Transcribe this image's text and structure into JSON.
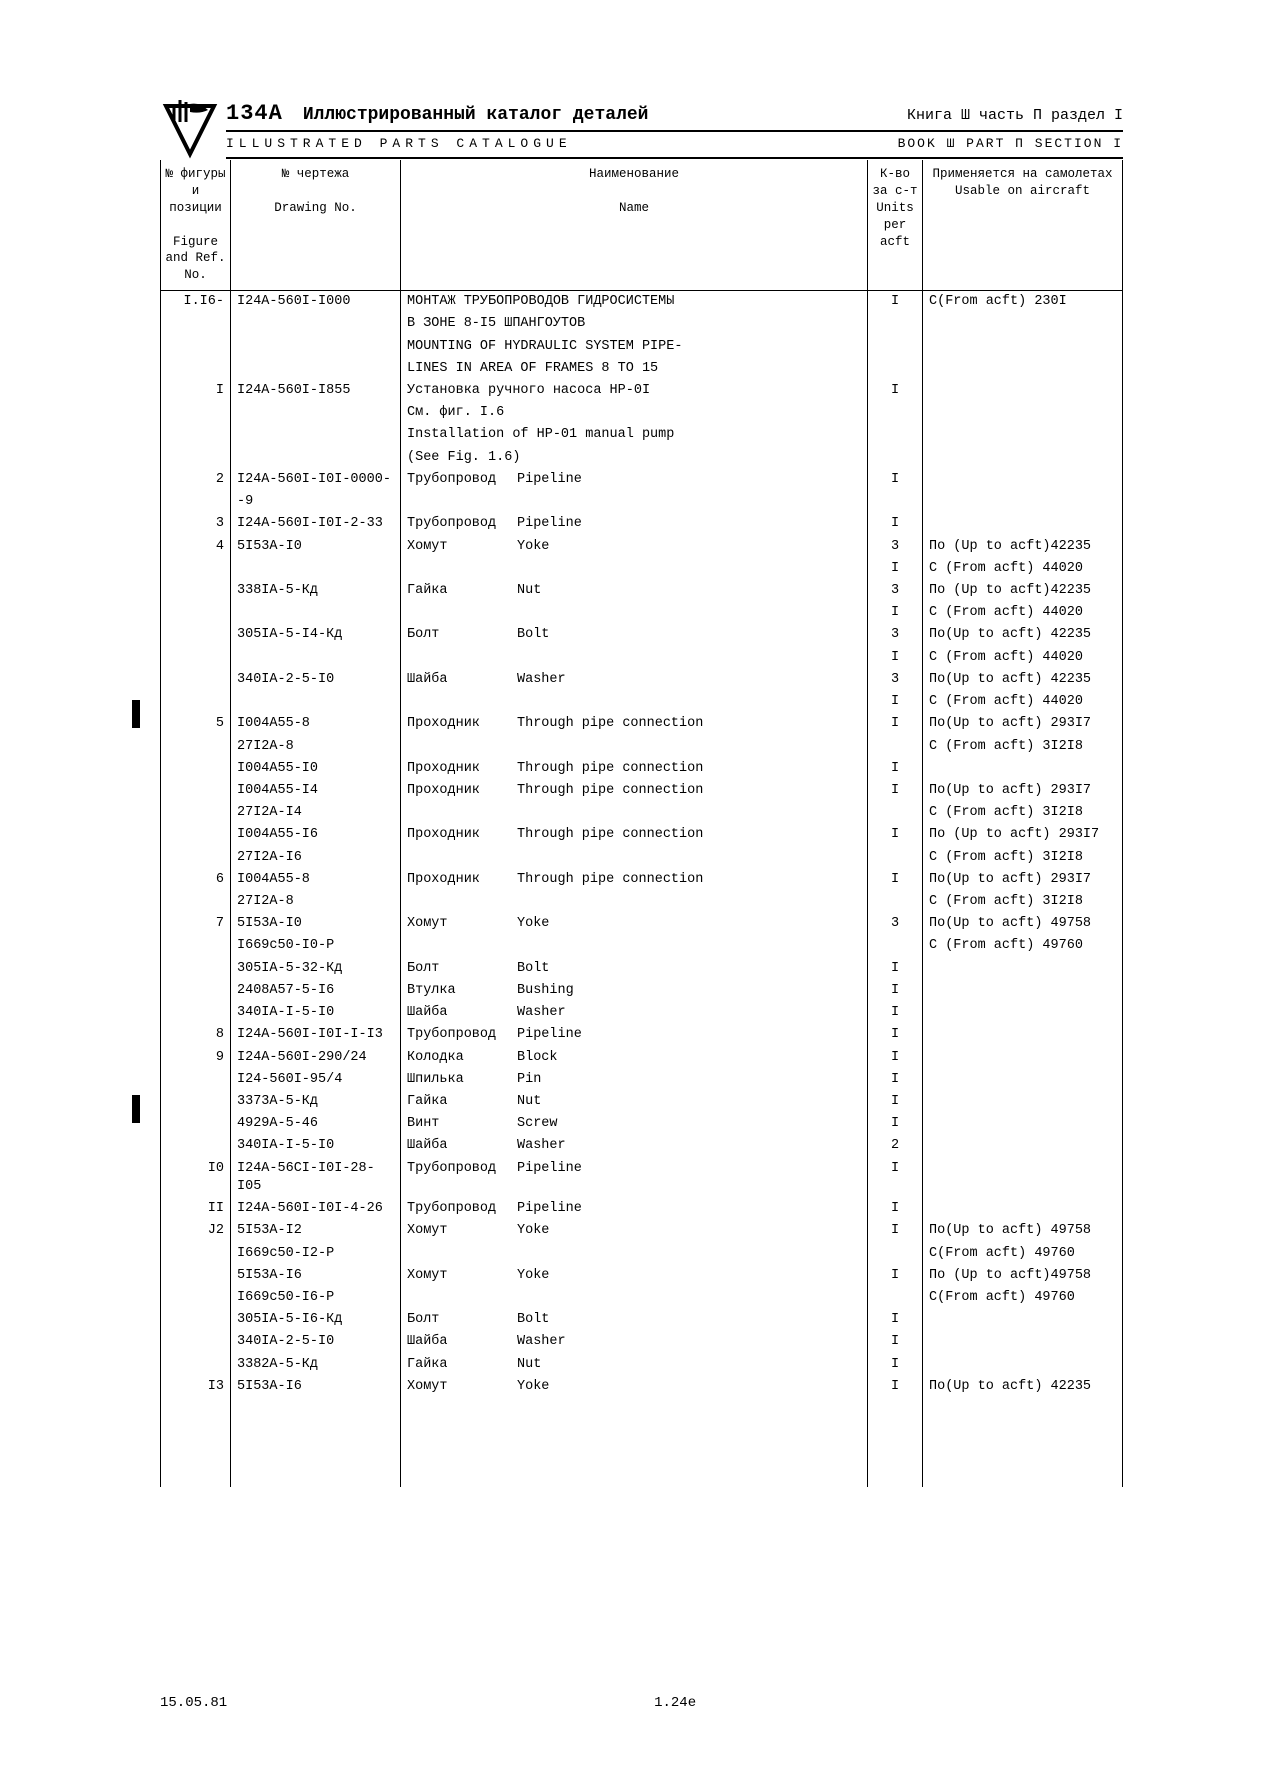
{
  "header": {
    "model": "134A",
    "title_ru": "Иллюстрированный  каталог  деталей",
    "title_en": "ILLUSTRATED  PARTS  CATALOGUE",
    "book_ru": "Книга  Ш   часть  П   раздел  I",
    "book_en": "BOOK  Ш    PART  П  SECTION I"
  },
  "columns": {
    "c1_ru": "№ фигуры и позиции",
    "c1_en": "Figure and Ref. No.",
    "c2_ru": "№  чертежа",
    "c2_en": "Drawing No.",
    "c3_ru": "Наименование",
    "c3_en": "Name",
    "c4_ru": "К-во за с-т",
    "c4_en": "Units per acft",
    "c5_ru": "Применяется на самолетах",
    "c5_en": "Usable on aircraft"
  },
  "rows": [
    {
      "ref": "I.I6-",
      "drw": "I24A-560I-I000",
      "name": "МОНТАЖ ТРУБОПРОВОДОВ ГИДРОСИСТЕМЫ",
      "units": "I",
      "use": "С(From acft)   230I",
      "pad": 1
    },
    {
      "ref": "",
      "drw": "",
      "name": "В ЗОНЕ 8-I5 ШПАНГОУТОВ",
      "units": "",
      "use": "",
      "pad": 1
    },
    {
      "ref": "",
      "drw": "",
      "name": "MOUNTING OF HYDRAULIC SYSTEM PIPE-",
      "units": "",
      "use": "",
      "pad": 1
    },
    {
      "ref": "",
      "drw": "",
      "name": "LINES IN AREA OF FRAMES 8 TO 15",
      "units": "",
      "use": "",
      "pad": 1
    },
    {
      "ref": "I",
      "drw": "I24A-560I-I855",
      "name": "Установка ручного насоса НР-0I",
      "units": "I",
      "use": ""
    },
    {
      "ref": "",
      "drw": "",
      "name": "См. фиг. I.6",
      "units": "",
      "use": ""
    },
    {
      "ref": "",
      "drw": "",
      "name": "Installation of HP-01 manual pump",
      "units": "",
      "use": ""
    },
    {
      "ref": "",
      "drw": "",
      "name": "(See Fig. 1.6)",
      "units": "",
      "use": ""
    },
    {
      "ref": "2",
      "drw": "I24A-560I-I0I-0000-",
      "name_ru": "Трубопровод",
      "name_en": "Pipeline",
      "units": "I",
      "use": ""
    },
    {
      "ref": "",
      "drw": "-9",
      "name": "",
      "units": "",
      "use": ""
    },
    {
      "ref": "3",
      "drw": "I24A-560I-I0I-2-33",
      "name_ru": "Трубопровод",
      "name_en": "Pipeline",
      "units": "I",
      "use": ""
    },
    {
      "ref": "4",
      "drw": "5I53A-I0",
      "name_ru": "Хомут",
      "name_en": "Yoke",
      "units": "3",
      "use": "По (Up to acft)42235"
    },
    {
      "ref": "",
      "drw": "",
      "name": "",
      "units": "I",
      "use": "С (From acft)  44020"
    },
    {
      "ref": "",
      "drw": "338IA-5-Кд",
      "name_ru": "Гайка",
      "name_en": "Nut",
      "units": "3",
      "use": "По (Up to acft)42235"
    },
    {
      "ref": "",
      "drw": "",
      "name": "",
      "units": "I",
      "use": "С (From acft)  44020"
    },
    {
      "ref": "",
      "drw": "305IA-5-I4-Кд",
      "name_ru": "Болт",
      "name_en": "Bolt",
      "units": "3",
      "use": "По(Up to acft) 42235"
    },
    {
      "ref": "",
      "drw": "",
      "name": "",
      "units": "I",
      "use": "С (From acft)  44020"
    },
    {
      "ref": "",
      "drw": "340IA-2-5-I0",
      "name_ru": "Шайба",
      "name_en": "Washer",
      "units": "3",
      "use": "По(Up to acft) 42235"
    },
    {
      "ref": "",
      "drw": "",
      "name": "",
      "units": "I",
      "use": "С (From acft)  44020"
    },
    {
      "ref": "5",
      "drw": "I004A55-8",
      "name_ru": "Проходник",
      "name_en": "Through pipe connection",
      "units": "I",
      "use": "По(Up to acft) 293I7"
    },
    {
      "ref": "",
      "drw": "27I2A-8",
      "name": "",
      "units": "",
      "use": "С (From acft)  3I2I8"
    },
    {
      "ref": "",
      "drw": "I004A55-I0",
      "name_ru": "Проходник",
      "name_en": "Through pipe connection",
      "units": "I",
      "use": ""
    },
    {
      "ref": "",
      "drw": "I004A55-I4",
      "name_ru": "Проходник",
      "name_en": "Through pipe connection",
      "units": "I",
      "use": "По(Up to acft) 293I7"
    },
    {
      "ref": "",
      "drw": "27I2A-I4",
      "name": "",
      "units": "",
      "use": "С (From acft)  3I2I8"
    },
    {
      "ref": "",
      "drw": "I004A55-I6",
      "name_ru": "Проходник",
      "name_en": "Through pipe connection",
      "units": "I",
      "use": "По (Up to acft) 293I7"
    },
    {
      "ref": "",
      "drw": "27I2A-I6",
      "name": "",
      "units": "",
      "use": "С (From acft)  3I2I8"
    },
    {
      "ref": "6",
      "drw": "I004A55-8",
      "name_ru": "Проходник",
      "name_en": "Through pipe connection",
      "units": "I",
      "use": "По(Up to acft) 293I7"
    },
    {
      "ref": "",
      "drw": "27I2A-8",
      "name": "",
      "units": "",
      "use": "С (From acft)  3I2I8"
    },
    {
      "ref": "7",
      "drw": "5I53A-I0",
      "name_ru": "Хомут",
      "name_en": "Yoke",
      "units": "3",
      "use": "По(Up to acft) 49758"
    },
    {
      "ref": "",
      "drw": "I669с50-I0-Р",
      "name": "",
      "units": "",
      "use": "С (From acft) 49760"
    },
    {
      "ref": "",
      "drw": "305IA-5-32-Кд",
      "name_ru": "Болт",
      "name_en": "Bolt",
      "units": "I",
      "use": ""
    },
    {
      "ref": "",
      "drw": "2408А57-5-I6",
      "name_ru": "Втулка",
      "name_en": "Bushing",
      "units": "I",
      "use": ""
    },
    {
      "ref": "",
      "drw": "340IA-I-5-I0",
      "name_ru": "Шайба",
      "name_en": "Washer",
      "units": "I",
      "use": ""
    },
    {
      "ref": "8",
      "drw": "I24A-560I-I0I-I-I3",
      "name_ru": "Трубопровод",
      "name_en": "Pipeline",
      "units": "I",
      "use": ""
    },
    {
      "ref": "9",
      "drw": "I24A-560I-290/24",
      "name_ru": "Колодка",
      "name_en": "Block",
      "units": "I",
      "use": ""
    },
    {
      "ref": "",
      "drw": "I24-560I-95/4",
      "name_ru": "Шпилька",
      "name_en": "Pin",
      "units": "I",
      "use": ""
    },
    {
      "ref": "",
      "drw": "3373А-5-Кд",
      "name_ru": "Гайка",
      "name_en": "Nut",
      "units": "I",
      "use": ""
    },
    {
      "ref": "",
      "drw": "4929А-5-46",
      "name_ru": "Винт",
      "name_en": "Screw",
      "units": "I",
      "use": ""
    },
    {
      "ref": "",
      "drw": "340IA-I-5-I0",
      "name_ru": "Шайба",
      "name_en": "Washer",
      "units": "2",
      "use": ""
    },
    {
      "ref": "I0",
      "drw": "I24A-56СI-I0I-28-I05",
      "name_ru": "Трубопровод",
      "name_en": "Pipeline",
      "units": "I",
      "use": ""
    },
    {
      "ref": "II",
      "drw": "I24A-560I-I0I-4-26",
      "name_ru": "Трубопровод",
      "name_en": "Pipeline",
      "units": "I",
      "use": ""
    },
    {
      "ref": "J2",
      "drw": "5I53A-I2",
      "name_ru": "Хомут",
      "name_en": "Yoke",
      "units": "I",
      "use": "По(Up to acft) 49758"
    },
    {
      "ref": "",
      "drw": "I669с50-I2-Р",
      "name": "",
      "units": "",
      "use": "С(From acft)  49760"
    },
    {
      "ref": "",
      "drw": "5I53A-I6",
      "name_ru": "Хомут",
      "name_en": "Yoke",
      "units": "I",
      "use": "По (Up to acft)49758"
    },
    {
      "ref": "",
      "drw": "I669с50-I6-Р",
      "name": "",
      "units": "",
      "use": "С(From acft)  49760"
    },
    {
      "ref": "",
      "drw": "305IA-5-I6-Кд",
      "name_ru": "Болт",
      "name_en": "Bolt",
      "units": "I",
      "use": ""
    },
    {
      "ref": "",
      "drw": "340IA-2-5-I0",
      "name_ru": "Шайба",
      "name_en": "Washer",
      "units": "I",
      "use": ""
    },
    {
      "ref": "",
      "drw": "3382А-5-Кд",
      "name_ru": "Гайка",
      "name_en": "Nut",
      "units": "I",
      "use": ""
    },
    {
      "ref": "I3",
      "drw": "5I53A-I6",
      "name_ru": "Хомут",
      "name_en": "Yoke",
      "units": "I",
      "use": "По(Up to acft) 42235"
    }
  ],
  "blank_rows": 4,
  "footer": {
    "left": "15.05.81",
    "center": "1.24е"
  },
  "binder_marks": [
    700,
    1095
  ]
}
